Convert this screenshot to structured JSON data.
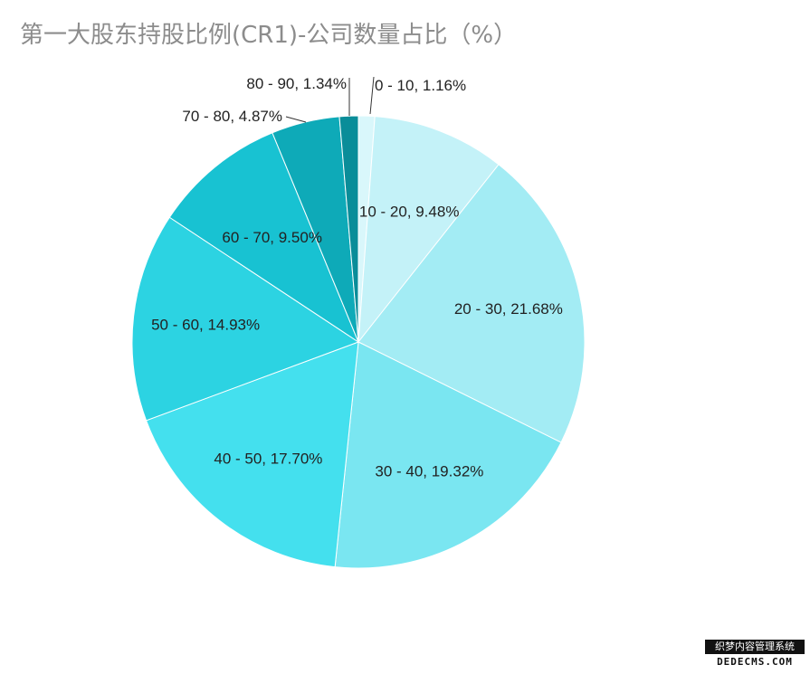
{
  "chart_data": {
    "type": "pie",
    "title": "第一大股东持股比例(CR1)-公司数量占比（%）",
    "slices": [
      {
        "label": "0 - 10",
        "value": 1.16,
        "color": "#d9f7fb"
      },
      {
        "label": "10 - 20",
        "value": 9.48,
        "color": "#c4f2f8"
      },
      {
        "label": "20 - 30",
        "value": 21.68,
        "color": "#a3ecf4"
      },
      {
        "label": "30 - 40",
        "value": 19.32,
        "color": "#7ae6f1"
      },
      {
        "label": "40 - 50",
        "value": 17.7,
        "color": "#44e0ee"
      },
      {
        "label": "50 - 60",
        "value": 14.93,
        "color": "#2cd3e2"
      },
      {
        "label": "60 - 70",
        "value": 9.5,
        "color": "#18c2d2"
      },
      {
        "label": "70 - 80",
        "value": 4.87,
        "color": "#0eaab8"
      },
      {
        "label": "80 - 90",
        "value": 1.34,
        "color": "#0a8d99"
      }
    ],
    "label_format": "{label}, {value}%"
  },
  "watermark": {
    "line1": "织梦内容管理系统",
    "line2": "DEDECMS.COM"
  }
}
